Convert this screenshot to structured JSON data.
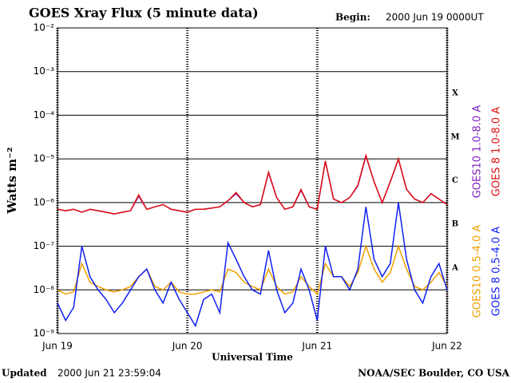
{
  "chart_data": {
    "type": "line",
    "title": "GOES Xray Flux (5 minute data)",
    "begin_label": "Begin:",
    "begin_time": "2000 Jun 19 0000UT",
    "ylabel": "Watts m⁻²",
    "xlabel": "Universal Time",
    "updated_label": "Updated",
    "updated_time": "2000 Jun 21 23:59:04",
    "source": "NOAA/SEC Boulder, CO USA",
    "log_scale": true,
    "grid": true,
    "legend": "right",
    "xlim": [
      0,
      72
    ],
    "xticks": [
      {
        "value": 0,
        "label": "Jun 19"
      },
      {
        "value": 24,
        "label": "Jun 20"
      },
      {
        "value": 48,
        "label": "Jun 21"
      },
      {
        "value": 72,
        "label": "Jun 22"
      }
    ],
    "ylim": [
      1e-09,
      0.01
    ],
    "yticks": [
      {
        "value": 1e-09,
        "label": "10⁻⁹"
      },
      {
        "value": 1e-08,
        "label": "10⁻⁸"
      },
      {
        "value": 1e-07,
        "label": "10⁻⁷"
      },
      {
        "value": 1e-06,
        "label": "10⁻⁶"
      },
      {
        "value": 1e-05,
        "label": "10⁻⁵"
      },
      {
        "value": 0.0001,
        "label": "10⁻⁴"
      },
      {
        "value": 0.001,
        "label": "10⁻³"
      },
      {
        "value": 0.01,
        "label": "10⁻²"
      }
    ],
    "flare_classes": [
      {
        "label": "X",
        "value": 0.0001
      },
      {
        "label": "M",
        "value": 1e-05
      },
      {
        "label": "C",
        "value": 1e-06
      },
      {
        "label": "B",
        "value": 1e-07
      },
      {
        "label": "A",
        "value": 1e-08
      }
    ],
    "x": [
      0,
      1.5,
      3,
      4.5,
      6,
      7.5,
      9,
      10.5,
      12,
      13.5,
      15,
      16.5,
      18,
      19.5,
      21,
      22.5,
      24,
      25.5,
      27,
      28.5,
      30,
      31.5,
      33,
      34.5,
      36,
      37.5,
      39,
      40.5,
      42,
      43.5,
      45,
      46.5,
      48,
      49.5,
      51,
      52.5,
      54,
      55.5,
      57,
      58.5,
      60,
      61.5,
      63,
      64.5,
      66,
      67.5,
      69,
      70.5,
      72
    ],
    "series": [
      {
        "name": "GOES10 1.0-8.0 A",
        "color": "#8020c0",
        "values": [
          7e-07,
          6.5e-07,
          7e-07,
          6e-07,
          7e-07,
          6.5e-07,
          6e-07,
          5.5e-07,
          6e-07,
          6.5e-07,
          1.4e-06,
          7e-07,
          8e-07,
          9e-07,
          7e-07,
          6.5e-07,
          6e-07,
          7e-07,
          7e-07,
          7.5e-07,
          8e-07,
          1.1e-06,
          1.6e-06,
          1e-06,
          8e-07,
          9e-07,
          4.8e-06,
          1.3e-06,
          7e-07,
          8e-07,
          1.9e-06,
          8e-07,
          7e-07,
          8.8e-06,
          1.2e-06,
          1e-06,
          1.3e-06,
          2.4e-06,
          1.15e-05,
          3e-06,
          1e-06,
          3e-06,
          9.8e-06,
          2e-06,
          1.2e-06,
          1e-06,
          1.6e-06,
          1.2e-06,
          9e-07
        ]
      },
      {
        "name": "GOES 8 1.0-8.0 A",
        "color": "#e01010",
        "values": [
          7e-07,
          6.5e-07,
          7e-07,
          6e-07,
          7e-07,
          6.5e-07,
          6e-07,
          5.5e-07,
          6e-07,
          6.5e-07,
          1.5e-06,
          7e-07,
          8e-07,
          9e-07,
          7e-07,
          6.5e-07,
          6e-07,
          7e-07,
          7e-07,
          7.5e-07,
          8e-07,
          1.1e-06,
          1.7e-06,
          1e-06,
          8e-07,
          9e-07,
          5e-06,
          1.3e-06,
          7e-07,
          8e-07,
          2e-06,
          8e-07,
          7e-07,
          9e-06,
          1.2e-06,
          1e-06,
          1.3e-06,
          2.5e-06,
          1.2e-05,
          3e-06,
          1e-06,
          3e-06,
          1e-05,
          2e-06,
          1.2e-06,
          1e-06,
          1.6e-06,
          1.2e-06,
          9e-07
        ]
      },
      {
        "name": "GOES10 0.5-4.0 A",
        "color": "#f0a000",
        "values": [
          1e-08,
          8e-09,
          9e-09,
          4e-08,
          1.5e-08,
          1.2e-08,
          1e-08,
          9e-09,
          1e-08,
          1.2e-08,
          2e-08,
          3e-08,
          1.2e-08,
          1e-08,
          1.5e-08,
          9e-09,
          8e-09,
          8e-09,
          9e-09,
          1e-08,
          9e-09,
          3e-08,
          2.5e-08,
          1.5e-08,
          1.2e-08,
          1e-08,
          3e-08,
          1.2e-08,
          8e-09,
          9e-09,
          2e-08,
          1.2e-08,
          8e-09,
          4e-08,
          2e-08,
          2e-08,
          1.2e-08,
          2.5e-08,
          1e-07,
          3e-08,
          1.5e-08,
          2.5e-08,
          1e-07,
          3e-08,
          1.2e-08,
          1e-08,
          1.5e-08,
          2.5e-08,
          1.2e-08
        ]
      },
      {
        "name": "GOES 8 0.5-4.0 A",
        "color": "#1020f0",
        "values": [
          5e-09,
          2e-09,
          4e-09,
          1e-07,
          2e-08,
          1e-08,
          6e-09,
          3e-09,
          5e-09,
          1e-08,
          2e-08,
          3e-08,
          1e-08,
          5e-09,
          1.5e-08,
          6e-09,
          3e-09,
          1.5e-09,
          6e-09,
          8e-09,
          3e-09,
          1.2e-07,
          5e-08,
          2e-08,
          1e-08,
          8e-09,
          8e-08,
          1e-08,
          3e-09,
          5e-09,
          3e-08,
          1e-08,
          2e-09,
          1e-07,
          2e-08,
          2e-08,
          1e-08,
          3e-08,
          8e-07,
          5e-08,
          2e-08,
          4e-08,
          1e-06,
          5e-08,
          1e-08,
          5e-09,
          2e-08,
          4e-08,
          1e-08
        ]
      }
    ]
  }
}
